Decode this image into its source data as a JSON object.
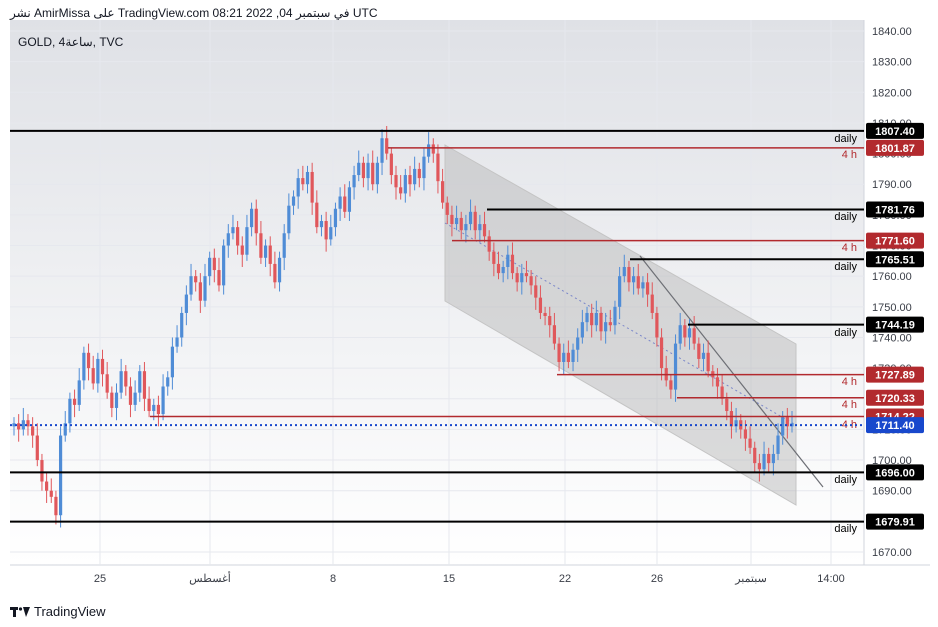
{
  "header": {
    "title": "نشر AmirMissa على TradingView.com 08:21 2022 ,04 في سبتمبر UTC"
  },
  "symbol": "GOLD, 4ساعة, TVC",
  "footer": {
    "brand": "TradingView"
  },
  "chart_data": {
    "type": "candlestick",
    "symbol": "GOLD",
    "interval": "4ساعة",
    "source": "TVC",
    "price_axis": {
      "ticks": [
        1840,
        1830,
        1820,
        1810,
        1800,
        1790,
        1780,
        1770,
        1760,
        1750,
        1740,
        1730,
        1720,
        1710,
        1700,
        1690,
        1680,
        1670
      ],
      "format": "0.00"
    },
    "time_axis": {
      "labels": [
        "25",
        "أغسطس",
        "8",
        "15",
        "22",
        "26",
        "سبتمبر",
        "14:00"
      ],
      "date_labels": [
        "2022-07-25",
        "2022-08-01",
        "2022-08-08",
        "2022-08-15",
        "2022-08-22",
        "2022-08-26",
        "2022-09-01",
        "14:00"
      ]
    },
    "colors": {
      "up": "#4f8cd6",
      "down": "#e0575b",
      "level_daily": "#000000",
      "level_4h": "#b22a2e",
      "last_price": "#1848cc",
      "channel_fill": "#b4b4b4"
    },
    "levels": [
      {
        "price": 1807.4,
        "label": "1807.40",
        "tag": "daily",
        "type": "daily"
      },
      {
        "price": 1801.87,
        "label": "1801.87",
        "tag": "4 h",
        "type": "4h"
      },
      {
        "price": 1781.76,
        "label": "1781.76",
        "tag": "daily",
        "type": "daily"
      },
      {
        "price": 1771.6,
        "label": "1771.60",
        "tag": "4 h",
        "type": "4h"
      },
      {
        "price": 1765.51,
        "label": "1765.51",
        "tag": "daily",
        "type": "daily"
      },
      {
        "price": 1744.19,
        "label": "1744.19",
        "tag": "daily",
        "type": "daily"
      },
      {
        "price": 1727.89,
        "label": "1727.89",
        "tag": "4 h",
        "type": "4h"
      },
      {
        "price": 1720.33,
        "label": "1720.33",
        "tag": "4 h",
        "type": "4h"
      },
      {
        "price": 1714.22,
        "label": "1714.22",
        "tag": "4 h",
        "type": "4h"
      },
      {
        "price": 1696.0,
        "label": "1696.00",
        "tag": "daily",
        "type": "daily"
      },
      {
        "price": 1679.91,
        "label": "1679.91",
        "tag": "daily",
        "type": "daily"
      }
    ],
    "last_price": {
      "price": 1711.4,
      "label": "1711.40"
    },
    "closes": [
      1712,
      1710,
      1713,
      1711,
      1708,
      1700,
      1693,
      1690,
      1688,
      1682,
      1708,
      1712,
      1720,
      1718,
      1726,
      1735,
      1730,
      1725,
      1733,
      1728,
      1722,
      1717,
      1722,
      1729,
      1724,
      1718,
      1722,
      1729,
      1720,
      1716,
      1718,
      1715,
      1724,
      1727,
      1737,
      1740,
      1748,
      1754,
      1760,
      1758,
      1752,
      1760,
      1766,
      1762,
      1757,
      1770,
      1774,
      1776,
      1770,
      1767,
      1776,
      1782,
      1774,
      1766,
      1770,
      1764,
      1758,
      1766,
      1774,
      1783,
      1786,
      1792,
      1790,
      1794,
      1784,
      1776,
      1778,
      1772,
      1776,
      1782,
      1786,
      1781,
      1789,
      1793,
      1797,
      1792,
      1797,
      1790,
      1797,
      1805,
      1800,
      1793,
      1789,
      1787,
      1793,
      1790,
      1795,
      1792,
      1799,
      1803,
      1800,
      1791,
      1784,
      1780,
      1777,
      1779,
      1775,
      1777,
      1781,
      1775,
      1777,
      1773,
      1768,
      1764,
      1761,
      1763,
      1767,
      1761,
      1758,
      1761,
      1760,
      1757,
      1753,
      1748,
      1747,
      1744,
      1738,
      1732,
      1735,
      1732,
      1736,
      1740,
      1745,
      1748,
      1744,
      1748,
      1742,
      1745,
      1744,
      1750,
      1760,
      1763,
      1758,
      1760,
      1756,
      1758,
      1754,
      1748,
      1740,
      1730,
      1726,
      1723,
      1738,
      1744,
      1740,
      1743,
      1738,
      1733,
      1735,
      1729,
      1727,
      1724,
      1720,
      1716,
      1711,
      1713,
      1710,
      1707,
      1704,
      1699,
      1697,
      1702,
      1699,
      1702,
      1708,
      1714,
      1711,
      1712
    ]
  }
}
